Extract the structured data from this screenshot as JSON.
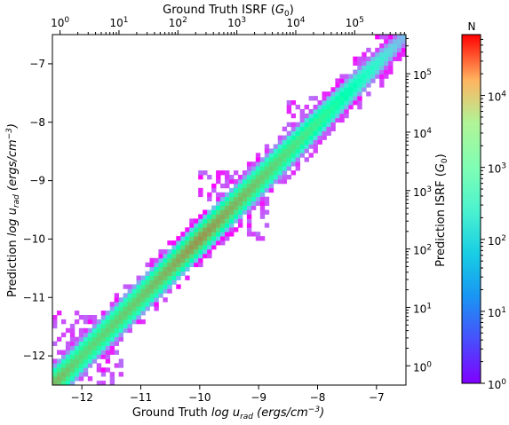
{
  "chart_data": {
    "type": "heatmap",
    "x_axis": {
      "label_main": "Ground Truth",
      "label_var": "log u",
      "label_sub": "rad",
      "label_units_pre": "(ergs/cm",
      "label_units_sup": "−3",
      "label_units_post": ")",
      "range": [
        -12.5,
        -6.5
      ],
      "ticks": [
        -12,
        -11,
        -10,
        -9,
        -8,
        -7
      ],
      "tick_labels": [
        "−12",
        "−11",
        "−10",
        "−9",
        "−8",
        "−7"
      ]
    },
    "y_axis": {
      "label_main": "Prediction",
      "label_var": "log u",
      "label_sub": "rad",
      "label_units_pre": "(ergs/cm",
      "label_units_sup": "−3",
      "label_units_post": ")",
      "range": [
        -12.5,
        -6.5
      ],
      "ticks": [
        -12,
        -11,
        -10,
        -9,
        -8,
        -7
      ],
      "tick_labels": [
        "−12",
        "−11",
        "−10",
        "−9",
        "−8",
        "−7"
      ]
    },
    "top_axis": {
      "label_pre": "Ground Truth ISRF (",
      "label_var": "G",
      "label_sub": "0",
      "label_post": ")",
      "log_scale": true,
      "tick_exponents": [
        0,
        1,
        2,
        3,
        4,
        5
      ],
      "tick_base": "10"
    },
    "right_axis": {
      "label_pre": "Prediction ISRF (",
      "label_var": "G",
      "label_sub": "0",
      "label_post": ")",
      "log_scale": true,
      "tick_exponents": [
        0,
        1,
        2,
        3,
        4,
        5
      ],
      "tick_base": "10"
    },
    "colorbar": {
      "title": "N",
      "log_scale": true,
      "range": [
        1,
        70000
      ],
      "tick_exponents": [
        0,
        1,
        2,
        3,
        4
      ],
      "tick_base": "10",
      "colormap": "rainbow"
    },
    "density_model": {
      "diagonal": "y = x",
      "peak_counts_along_diagonal": [
        {
          "x": -12.4,
          "n": 4000
        },
        {
          "x": -12.0,
          "n": 2000
        },
        {
          "x": -11.0,
          "n": 3000
        },
        {
          "x": -10.0,
          "n": 8000
        },
        {
          "x": -9.0,
          "n": 3000
        },
        {
          "x": -8.0,
          "n": 1000
        },
        {
          "x": -7.0,
          "n": 100
        },
        {
          "x": -6.6,
          "n": 20
        }
      ],
      "scatter_regions": [
        {
          "x_range": [
            -12.5,
            -11.3
          ],
          "y_range": [
            -12.5,
            -11.2
          ]
        },
        {
          "x_range": [
            -10.0,
            -8.8
          ],
          "y_range": [
            -10.0,
            -8.8
          ]
        },
        {
          "x_range": [
            -8.5,
            -7.8
          ],
          "y_range": [
            -8.3,
            -7.5
          ]
        }
      ]
    }
  }
}
